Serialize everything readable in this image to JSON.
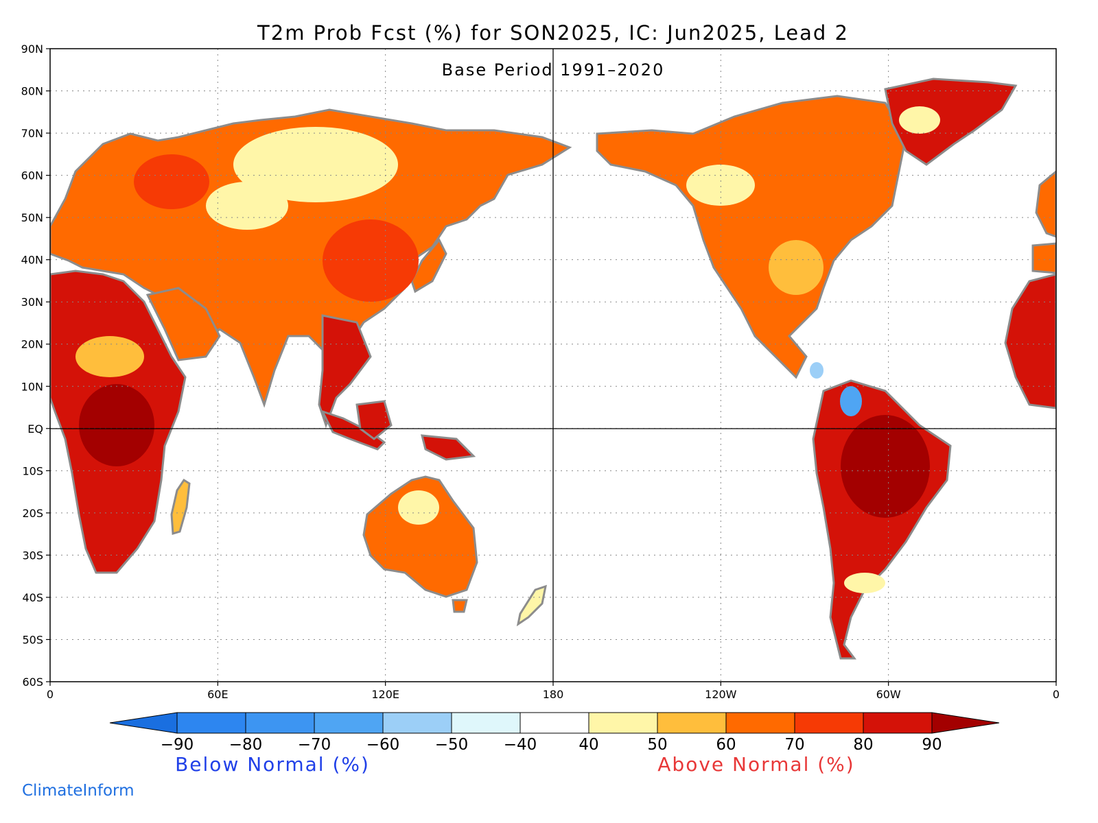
{
  "title": "T2m Prob Fcst (%) for SON2025, IC: Jun2025, Lead 2",
  "subtitle": "Base Period 1991–2020",
  "lat_labels": [
    "90N",
    "80N",
    "70N",
    "60N",
    "50N",
    "40N",
    "30N",
    "20N",
    "10N",
    "EQ",
    "10S",
    "20S",
    "30S",
    "40S",
    "50S",
    "60S"
  ],
  "lon_labels": [
    "0",
    "60E",
    "120E",
    "180",
    "120W",
    "60W",
    "0"
  ],
  "colorbar": {
    "tick_labels": [
      "−90",
      "−80",
      "−70",
      "−60",
      "−50",
      "−40",
      "40",
      "50",
      "60",
      "70",
      "80",
      "90"
    ],
    "colors": [
      "#1a6fe0",
      "#2d86f0",
      "#3d95f2",
      "#4fa5f3",
      "#9ccff7",
      "#dff7fb",
      "#ffffff",
      "#fff6a8",
      "#ffbe3c",
      "#ff6a00",
      "#f63a05",
      "#d41208",
      "#a30000"
    ],
    "below_label": "Below Normal (%)",
    "above_label": "Above Normal (%)",
    "below_color": "#2040e8",
    "above_color": "#e83838"
  },
  "credit": "ClimateInform",
  "colors": {
    "coast": "#8c8c8c",
    "land_warm": "#ff6a00",
    "land_hot": "#d41208",
    "land_mild": "#ffbe3c",
    "land_pale": "#fff6a8",
    "land_below": "#4fa5f3"
  }
}
